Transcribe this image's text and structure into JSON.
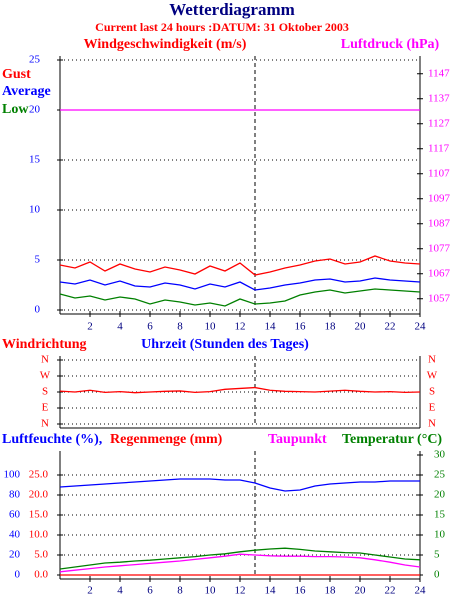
{
  "chart_data": [
    {
      "type": "line",
      "title": "Wetterdiagramm",
      "subtitle": "Current last 24 hours :DATUM: 31 Oktober 2003",
      "ylabel": "Windgeschwindigkeit (m/s)",
      "y2label": "Luftdruck (hPa)",
      "x": [
        0,
        1,
        2,
        3,
        4,
        5,
        6,
        7,
        8,
        9,
        10,
        11,
        12,
        13,
        14,
        15,
        16,
        17,
        18,
        19,
        20,
        21,
        22,
        23,
        24
      ],
      "xlim": [
        0,
        24
      ],
      "xticks": [
        2,
        4,
        6,
        8,
        10,
        12,
        14,
        16,
        18,
        20,
        22,
        24
      ],
      "ylim": [
        0,
        25
      ],
      "yticks": [
        0,
        5,
        10,
        15,
        20,
        25
      ],
      "y2lim": [
        1052.5,
        1152.5
      ],
      "y2ticks": [
        1057,
        1067,
        1077,
        1087,
        1097,
        1107,
        1117,
        1127,
        1137,
        1147
      ],
      "grid": true,
      "series": [
        {
          "name": "Gust",
          "color": "#ff0000",
          "values": [
            4.5,
            4.2,
            4.8,
            3.9,
            4.6,
            4.1,
            3.8,
            4.3,
            4.0,
            3.6,
            4.4,
            3.9,
            4.7,
            3.5,
            3.8,
            4.2,
            4.5,
            4.9,
            5.1,
            4.6,
            4.8,
            5.4,
            4.9,
            4.7,
            4.6
          ]
        },
        {
          "name": "Average",
          "color": "#0000ff",
          "values": [
            2.8,
            2.6,
            3.0,
            2.5,
            2.9,
            2.4,
            2.3,
            2.7,
            2.5,
            2.1,
            2.6,
            2.3,
            2.8,
            2.0,
            2.2,
            2.5,
            2.7,
            3.0,
            3.1,
            2.8,
            2.9,
            3.2,
            3.0,
            2.9,
            2.8
          ]
        },
        {
          "name": "Low",
          "color": "#008000",
          "values": [
            1.6,
            1.2,
            1.4,
            1.0,
            1.3,
            1.1,
            0.6,
            1.0,
            0.8,
            0.5,
            0.7,
            0.4,
            1.1,
            0.6,
            0.7,
            0.9,
            1.5,
            1.8,
            2.0,
            1.7,
            1.9,
            2.1,
            2.0,
            1.9,
            1.8
          ]
        },
        {
          "color": "#ff00ff",
          "axis": "y2",
          "values": [
            1132.5,
            1132.5,
            1132.5,
            1132.5,
            1132.5,
            1132.5,
            1132.5,
            1132.5,
            1132.5,
            1132.5,
            1132.5,
            1132.5,
            1132.5,
            1132.5,
            1132.5,
            1132.5,
            1132.5,
            1132.5,
            1132.5,
            1132.5,
            1132.5,
            1132.5,
            1132.5,
            1132.5,
            1132.5
          ]
        }
      ]
    },
    {
      "type": "line",
      "ylabel": "Windrichtung",
      "xlabel": "Uhrzeit (Stunden des Tages)",
      "x": [
        0,
        1,
        2,
        3,
        4,
        5,
        6,
        7,
        8,
        9,
        10,
        11,
        12,
        13,
        14,
        15,
        16,
        17,
        18,
        19,
        20,
        21,
        22,
        23,
        24
      ],
      "xlim": [
        0,
        24
      ],
      "ylim": [
        0,
        360
      ],
      "yticks": [
        {
          "value": 0,
          "label": "N"
        },
        {
          "value": 90,
          "label": "E"
        },
        {
          "value": 180,
          "label": "S"
        },
        {
          "value": 270,
          "label": "W"
        },
        {
          "value": 360,
          "label": "N"
        }
      ],
      "grid": true,
      "series": [
        {
          "color": "#ff0000",
          "values": [
            185,
            180,
            190,
            178,
            182,
            176,
            180,
            184,
            186,
            178,
            182,
            195,
            200,
            205,
            190,
            184,
            182,
            180,
            185,
            190,
            184,
            180,
            182,
            178,
            180
          ]
        }
      ]
    },
    {
      "type": "line",
      "x": [
        0,
        1,
        2,
        3,
        4,
        5,
        6,
        7,
        8,
        9,
        10,
        11,
        12,
        13,
        14,
        15,
        16,
        17,
        18,
        19,
        20,
        21,
        22,
        23,
        24
      ],
      "xlim": [
        0,
        24
      ],
      "xticks": [
        2,
        4,
        6,
        8,
        10,
        12,
        14,
        16,
        18,
        20,
        22,
        24
      ],
      "ylim": [
        0,
        120
      ],
      "yticks": [
        0,
        20,
        40,
        60,
        80,
        100
      ],
      "y3lim": [
        0,
        30
      ],
      "y3ticks": [
        {
          "value": 0,
          "label": "0.0"
        },
        {
          "value": 5,
          "label": "5.0"
        },
        {
          "value": 10,
          "label": "10.0"
        },
        {
          "value": 15,
          "label": "15.0"
        },
        {
          "value": 20,
          "label": "20.0"
        },
        {
          "value": 25,
          "label": "25.0"
        }
      ],
      "y2lim": [
        0,
        30
      ],
      "y2ticks": [
        0,
        5,
        10,
        15,
        20,
        25,
        30
      ],
      "grid": true,
      "series": [
        {
          "name": "Luftfeuchte (%),",
          "color": "#0000ff",
          "values": [
            88,
            89,
            90,
            91,
            92,
            93,
            94,
            95,
            96,
            96,
            96,
            95,
            95,
            92,
            87,
            84,
            85,
            89,
            91,
            92,
            93,
            93,
            94,
            94,
            94
          ]
        },
        {
          "name": "Regenmenge (mm)",
          "color": "#ff0000",
          "axis": "y3",
          "values": [
            0,
            0,
            0,
            0,
            0,
            0,
            0,
            0,
            0,
            0,
            0,
            0,
            0,
            0,
            0,
            0,
            0,
            0,
            0,
            0,
            0,
            0,
            0,
            0,
            0
          ]
        },
        {
          "name": "Taupunkt",
          "color": "#ff00ff",
          "axis": "y2",
          "values": [
            0.8,
            1.2,
            1.6,
            2.0,
            2.3,
            2.6,
            2.9,
            3.2,
            3.5,
            3.9,
            4.3,
            4.7,
            5.2,
            5.0,
            4.8,
            4.7,
            4.7,
            4.6,
            4.6,
            4.5,
            4.3,
            3.8,
            3.2,
            2.5,
            2.0
          ]
        },
        {
          "name": "Temperatur (°C)",
          "color": "#008000",
          "axis": "y2",
          "values": [
            1.5,
            2.0,
            2.5,
            3.0,
            3.2,
            3.5,
            3.7,
            4.0,
            4.3,
            4.6,
            5.0,
            5.3,
            5.8,
            6.2,
            6.5,
            6.7,
            6.4,
            6.0,
            5.8,
            5.6,
            5.5,
            5.0,
            4.5,
            4.0,
            3.8
          ]
        }
      ]
    }
  ]
}
